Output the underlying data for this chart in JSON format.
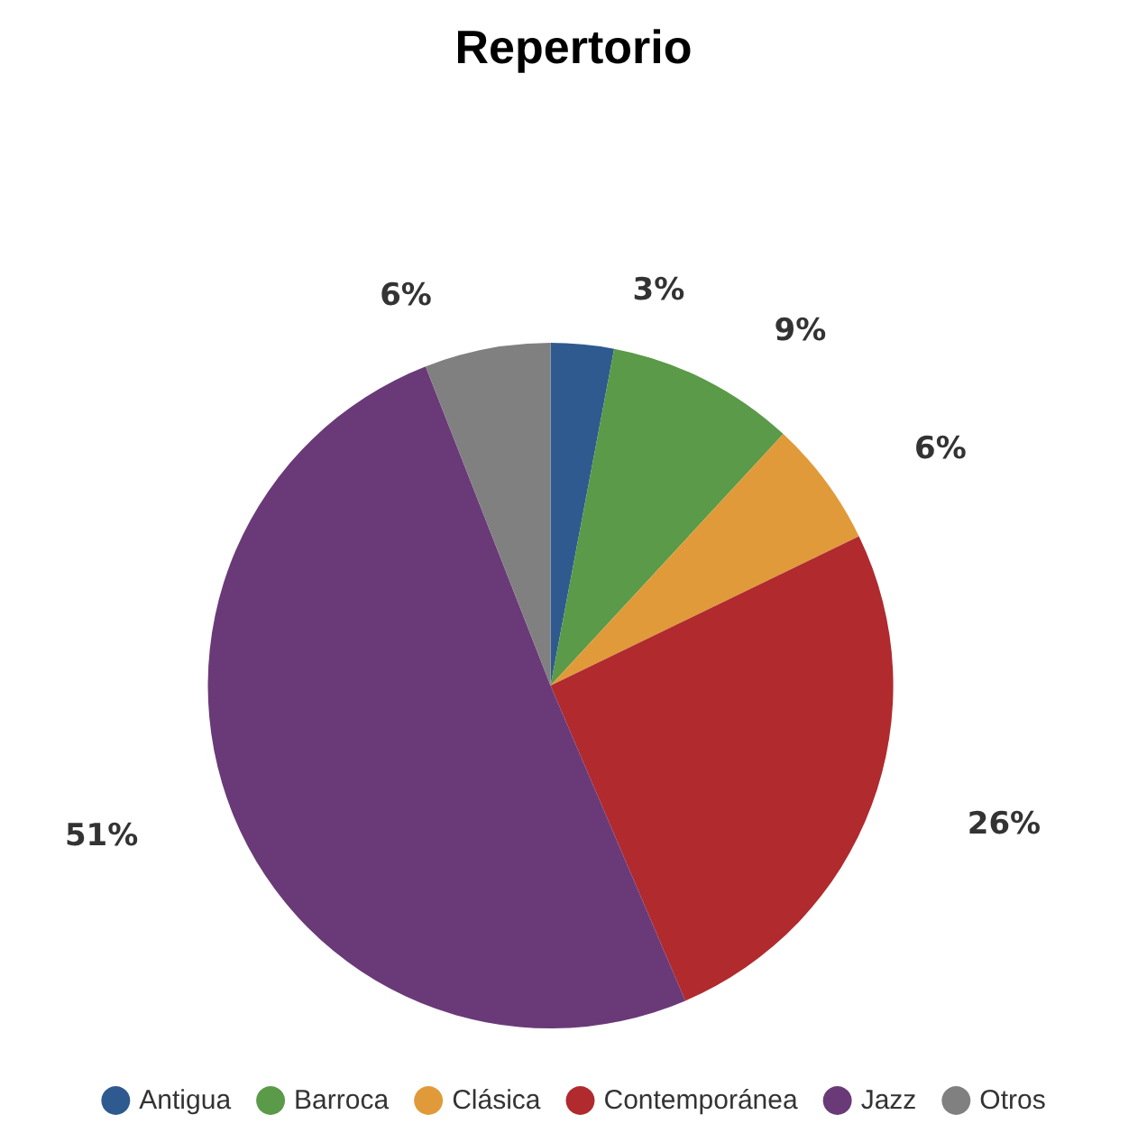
{
  "chart_data": {
    "type": "pie",
    "title": "Repertorio",
    "categories": [
      "Antigua",
      "Barroca",
      "Clásica",
      "Contemporánea",
      "Jazz",
      "Otros"
    ],
    "values": [
      3,
      9,
      6,
      26,
      51,
      6
    ],
    "value_labels": [
      "3%",
      "9%",
      "6%",
      "26%",
      "51%",
      "6%"
    ],
    "colors": [
      "#2f5a8f",
      "#5a9a48",
      "#e09a3a",
      "#b02a2e",
      "#6a3a78",
      "#808080"
    ],
    "legend": "bottom"
  }
}
